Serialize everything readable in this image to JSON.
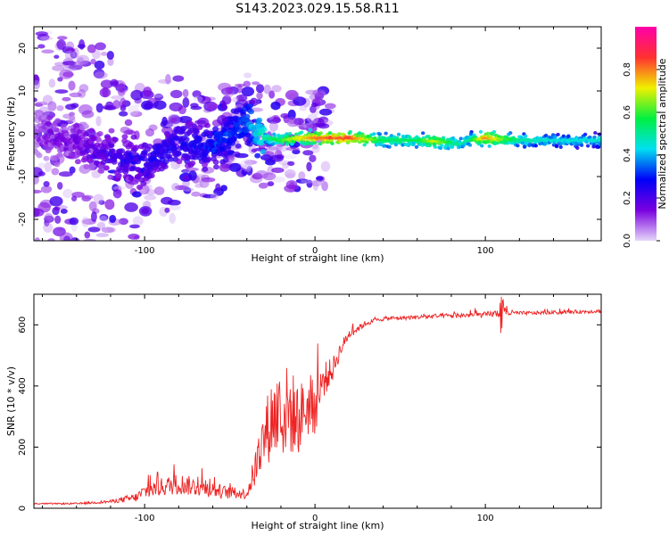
{
  "title": "S143.2023.029.15.58.R11",
  "colors": {
    "snr_line": "#ee2222",
    "axis": "#000000",
    "background": "#ffffff"
  },
  "chart_data": [
    {
      "type": "heatmap",
      "xlabel": "Height of straight line (km)",
      "ylabel": "Frequency (Hz)",
      "xlim": [
        -165,
        168
      ],
      "ylim": [
        -25,
        25
      ],
      "xticks": [
        -100,
        0,
        100
      ],
      "yticks": [
        -20,
        -10,
        0,
        10,
        20
      ],
      "colorbar": {
        "label": "Normalized spectral amplitude",
        "range": [
          0,
          1
        ],
        "ticks": [
          0.0,
          0.2,
          0.4,
          0.6,
          0.8
        ],
        "colormap": [
          "#e6d6fa",
          "#7a00e0",
          "#0000f8",
          "#00e0f0",
          "#00f040",
          "#f0f000",
          "#ff3030",
          "#ff00aa"
        ]
      },
      "ridge": {
        "x": [
          -165,
          -140,
          -120,
          -100,
          -80,
          -60,
          -40,
          -30,
          -20,
          -10,
          0,
          20,
          40,
          60,
          70,
          80,
          85,
          90,
          100,
          120,
          140,
          168
        ],
        "freq": [
          0,
          -2,
          -5,
          -7,
          -2,
          -3,
          3,
          -1,
          -1.5,
          -1,
          -1,
          -1,
          -1.5,
          -1.5,
          -1.8,
          -2,
          -2.5,
          -1.5,
          -1,
          -1.5,
          -1.5,
          -1.5
        ],
        "amplitude": [
          0.1,
          0.15,
          0.2,
          0.25,
          0.25,
          0.3,
          0.35,
          0.5,
          0.6,
          0.7,
          0.8,
          0.85,
          0.55,
          0.55,
          0.7,
          0.55,
          0.5,
          0.5,
          0.8,
          0.5,
          0.45,
          0.45
        ]
      }
    },
    {
      "type": "line",
      "xlabel": "Height of straight line (km)",
      "ylabel": "SNR (10 * v/v)",
      "xlim": [
        -165,
        168
      ],
      "ylim": [
        0,
        700
      ],
      "xticks": [
        -100,
        0,
        100
      ],
      "yticks": [
        0,
        200,
        400,
        600
      ],
      "series": [
        {
          "x": [
            -165,
            -140,
            -120,
            -105,
            -100,
            -90,
            -80,
            -70,
            -60,
            -50,
            -40,
            -35,
            -30,
            -25,
            -20,
            -15,
            -10,
            -5,
            0,
            5,
            10,
            15,
            20,
            30,
            40,
            60,
            80,
            100,
            110,
            120,
            140,
            168
          ],
          "values": [
            15,
            15,
            22,
            35,
            55,
            70,
            80,
            70,
            60,
            50,
            48,
            130,
            230,
            300,
            310,
            320,
            290,
            330,
            330,
            420,
            450,
            520,
            570,
            605,
            620,
            625,
            630,
            633,
            640,
            638,
            640,
            645
          ],
          "noise": [
            2,
            3,
            5,
            15,
            25,
            30,
            35,
            30,
            25,
            20,
            18,
            60,
            100,
            140,
            160,
            150,
            120,
            100,
            90,
            60,
            40,
            25,
            15,
            8,
            7,
            7,
            8,
            9,
            14,
            6,
            6,
            6
          ]
        }
      ]
    }
  ]
}
